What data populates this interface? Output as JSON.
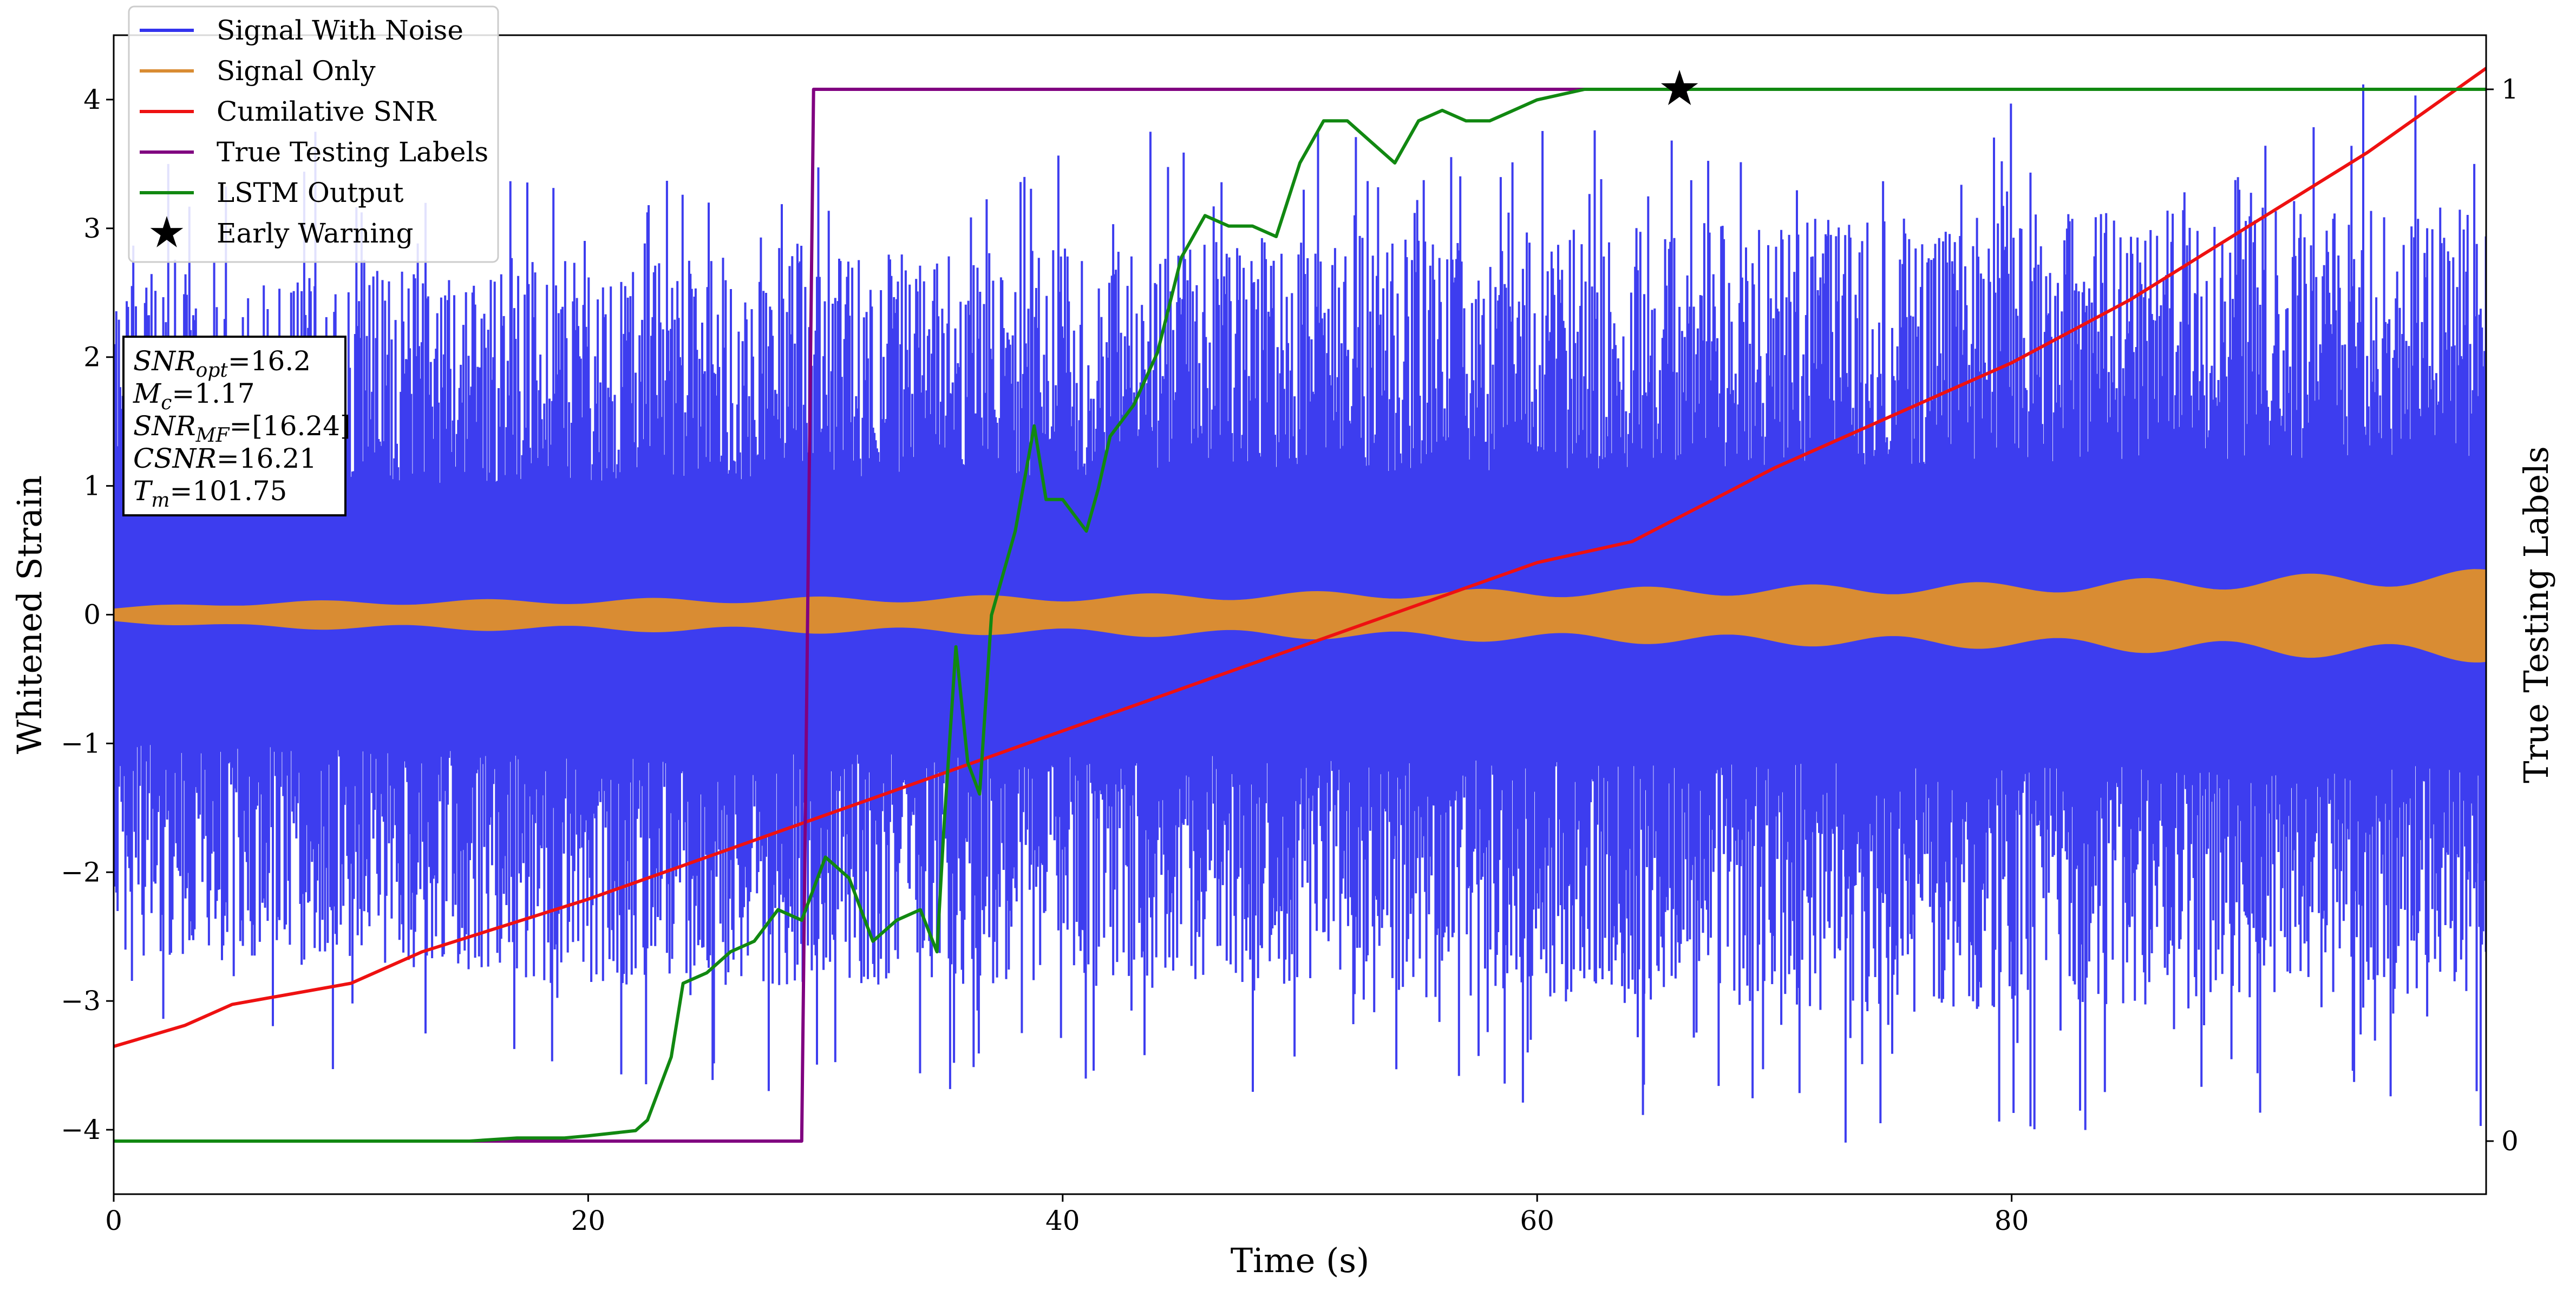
{
  "chart_data": {
    "type": "line",
    "title": "",
    "xlabel": "Time (s)",
    "ylabel": "Whitened Strain",
    "y2label": "True Testing Labels",
    "xlim": [
      0,
      100
    ],
    "ylim": [
      -4.5,
      4.5
    ],
    "y2lim": [
      -0.05,
      1.05
    ],
    "xticks": [
      0,
      20,
      40,
      60,
      80
    ],
    "xtick_labels": [
      "0",
      "20",
      "40",
      "60",
      "80"
    ],
    "yticks": [
      -4,
      -3,
      -2,
      -1,
      0,
      1,
      2,
      3,
      4
    ],
    "ytick_labels": [
      "−4",
      "−3",
      "−2",
      "−1",
      "0",
      "1",
      "2",
      "3",
      "4"
    ],
    "y2ticks": [
      0,
      1
    ],
    "y2tick_labels": [
      "0",
      "1"
    ],
    "grid": false,
    "legend_position": "upper-left",
    "colors": {
      "signal_with_noise": "#3333ee",
      "signal_only": "#d98c33",
      "cumulative_snr": "#ee1111",
      "true_labels": "#800080",
      "lstm_output": "#118811",
      "early_warning": "#000000"
    },
    "series": [
      {
        "name": "Signal With Noise",
        "style": "dense oscillating noise",
        "x_range": [
          0,
          100
        ],
        "envelope_lower": [
          [
            0,
            -2.2
          ],
          [
            20,
            -2.4
          ],
          [
            40,
            -2.4
          ],
          [
            60,
            -2.5
          ],
          [
            80,
            -2.6
          ],
          [
            100,
            -2.6
          ]
        ],
        "envelope_upper": [
          [
            0,
            2.2
          ],
          [
            20,
            2.3
          ],
          [
            40,
            2.4
          ],
          [
            60,
            2.5
          ],
          [
            80,
            2.6
          ],
          [
            100,
            2.7
          ]
        ],
        "extreme_points": [
          [
            73,
            -4.1
          ],
          [
            64.5,
            -3.65
          ],
          [
            99.6,
            -3.7
          ],
          [
            99.5,
            3.5
          ],
          [
            8.5,
            3.75
          ],
          [
            43.7,
            3.75
          ],
          [
            2.3,
            3.5
          ],
          [
            59.6,
            -3.4
          ]
        ]
      },
      {
        "name": "Signal Only",
        "style": "filled oscillating band",
        "amplitude": [
          [
            0,
            0.05
          ],
          [
            5,
            0.1
          ],
          [
            20,
            0.12
          ],
          [
            40,
            0.15
          ],
          [
            60,
            0.2
          ],
          [
            80,
            0.25
          ],
          [
            100,
            0.35
          ]
        ]
      },
      {
        "name": "Cumilative SNR",
        "axis": "right",
        "x": [
          0,
          3,
          5,
          10,
          13,
          20,
          25,
          30,
          35,
          40,
          45,
          50,
          55,
          60,
          64,
          70,
          75,
          80,
          85,
          90,
          95,
          100
        ],
        "y": [
          0.09,
          0.11,
          0.13,
          0.15,
          0.18,
          0.23,
          0.27,
          0.31,
          0.35,
          0.39,
          0.43,
          0.47,
          0.51,
          0.55,
          0.57,
          0.64,
          0.69,
          0.74,
          0.8,
          0.87,
          0.94,
          1.02
        ]
      },
      {
        "name": "True Testing Labels",
        "axis": "right",
        "x": [
          0,
          29,
          29.5,
          65.8
        ],
        "y": [
          0,
          0,
          1,
          1
        ]
      },
      {
        "name": "LSTM Output",
        "axis": "right",
        "x": [
          0,
          15,
          17,
          19,
          20,
          22,
          22.5,
          23.5,
          24,
          25,
          26,
          27,
          28,
          29,
          30,
          31,
          32,
          33,
          34,
          34.7,
          35,
          35.5,
          36,
          36.5,
          37,
          38,
          38.8,
          39.3,
          40,
          41,
          41.5,
          42,
          43,
          44,
          45,
          46,
          47,
          48,
          49,
          50,
          51,
          52,
          53,
          54,
          55,
          56,
          57,
          58,
          59,
          60,
          62,
          66,
          100
        ],
        "y": [
          0,
          0,
          0.003,
          0.003,
          0.005,
          0.01,
          0.02,
          0.08,
          0.15,
          0.16,
          0.18,
          0.19,
          0.22,
          0.21,
          0.27,
          0.25,
          0.19,
          0.21,
          0.22,
          0.18,
          0.3,
          0.47,
          0.36,
          0.33,
          0.5,
          0.58,
          0.68,
          0.61,
          0.61,
          0.58,
          0.62,
          0.67,
          0.7,
          0.75,
          0.84,
          0.88,
          0.87,
          0.87,
          0.86,
          0.93,
          0.97,
          0.97,
          0.95,
          0.93,
          0.97,
          0.98,
          0.97,
          0.97,
          0.98,
          0.99,
          1.0,
          1.0,
          1.0
        ]
      },
      {
        "name": "Early Warning",
        "axis": "right",
        "marker": "star",
        "points": [
          [
            66,
            1.0
          ]
        ]
      }
    ],
    "annotation": {
      "lines": [
        {
          "base": "SNR",
          "sub": "opt",
          "value": "=16.2"
        },
        {
          "base": "M",
          "sub": "c",
          "value": "=1.17"
        },
        {
          "base": "SNR",
          "sub": "MF",
          "value": "=[16.24]"
        },
        {
          "base": "CSNR",
          "sub": "",
          "value": "=16.21"
        },
        {
          "base": "T",
          "sub": "m",
          "value": "=101.75"
        }
      ]
    }
  }
}
